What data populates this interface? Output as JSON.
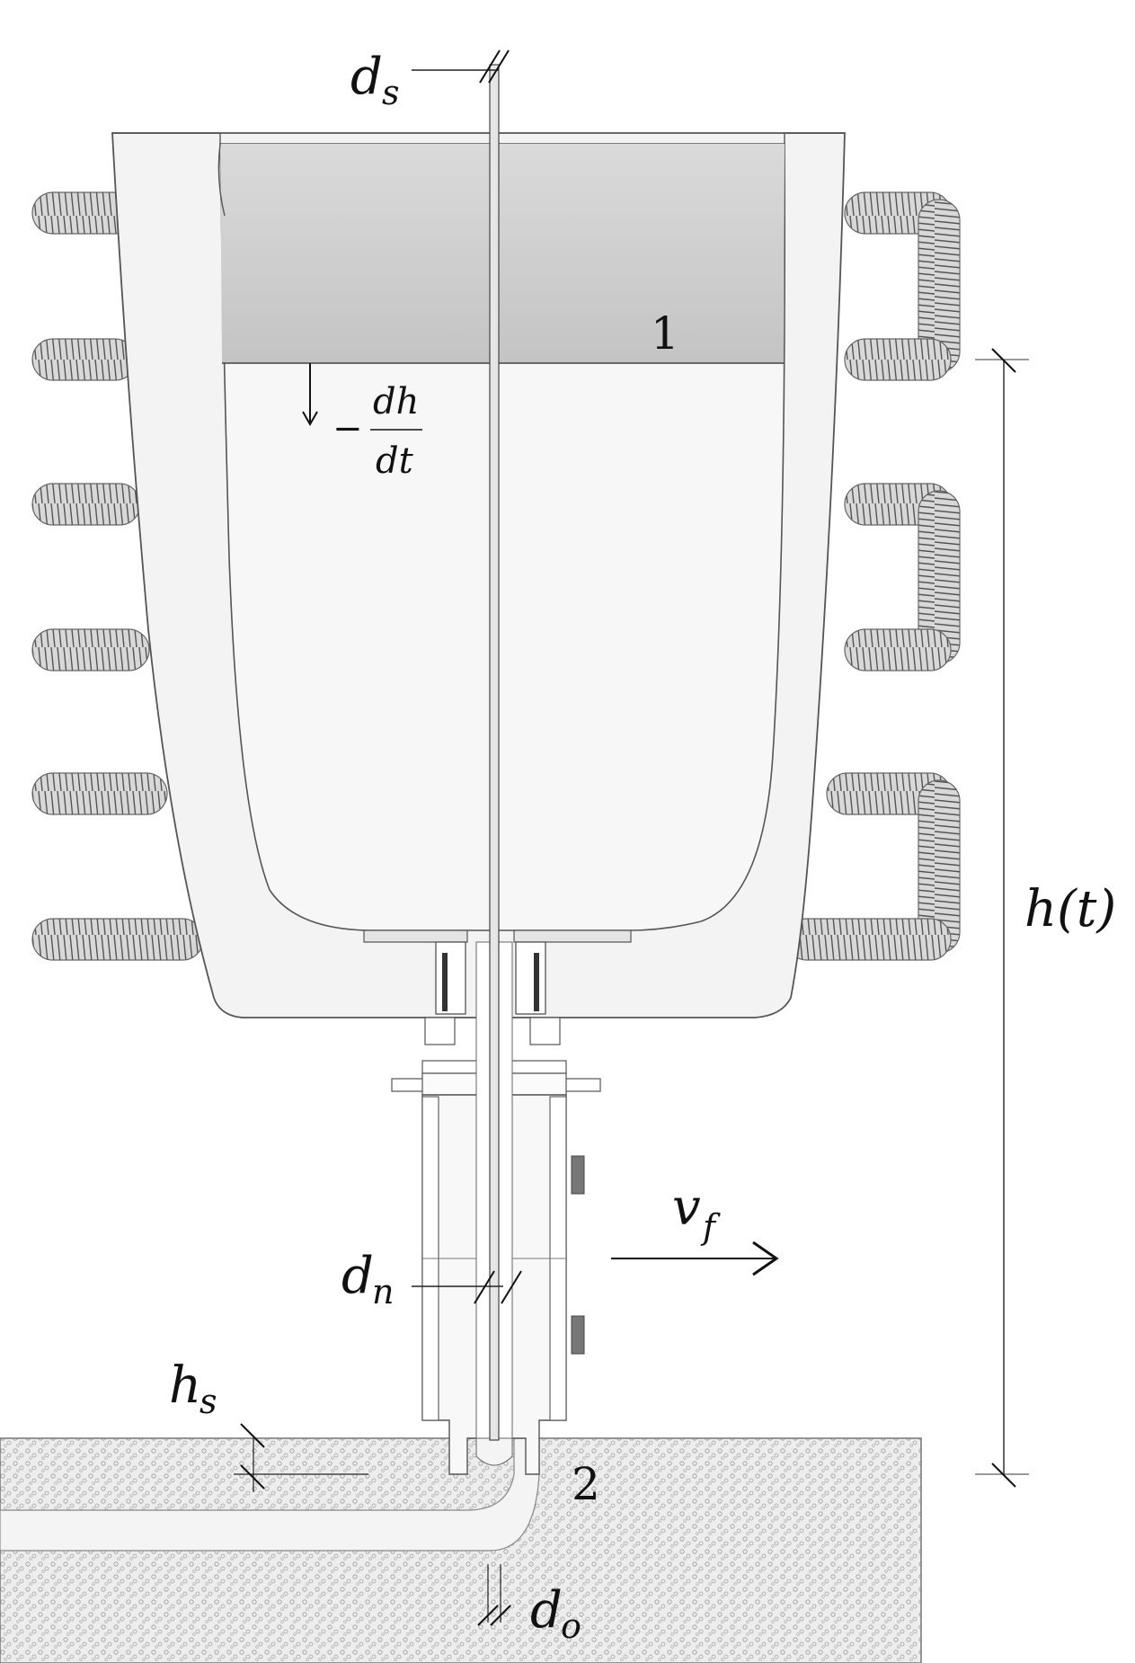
{
  "labels": {
    "ds": "d",
    "ds_sub": "s",
    "region_1": "1",
    "region_2": "2",
    "dhdt_minus": "−",
    "dhdt_num": "dh",
    "dhdt_den": "dt",
    "ht": "h(t)",
    "vf": "v",
    "vf_sub": "f",
    "dn": "d",
    "dn_sub": "n",
    "hs": "h",
    "hs_sub": "s",
    "do": "d",
    "do_sub": "o"
  },
  "colors": {
    "ink": "#111111",
    "crucible_fill": "#f2f2f2",
    "melt_fill": "#cfcfcf",
    "coil": "#8a8a8a",
    "sand": "#e9e9e9"
  }
}
